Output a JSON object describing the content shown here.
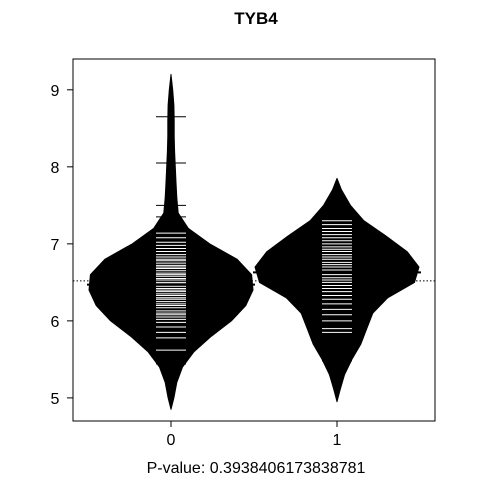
{
  "chart_data": {
    "type": "beanplot",
    "title": "TYB4",
    "xlabel": "P-value: 0.3938406173838781",
    "ylabel": "",
    "categories": [
      "0",
      "1"
    ],
    "yticks": [
      5,
      6,
      7,
      8,
      9
    ],
    "ytick_labels": [
      "5",
      "6",
      "7",
      "8",
      "9"
    ],
    "xtick_labels": [
      "0",
      "1"
    ],
    "ylim": [
      4.7,
      9.4
    ],
    "overall_mean": 6.52,
    "reference_line_style": "dotted",
    "group_means": [
      6.47,
      6.63
    ],
    "fill_color": "#000000",
    "observation_color": "#ffffff",
    "groups": [
      {
        "name": "0",
        "density_profile": [
          {
            "y": 4.85,
            "density": 0.0
          },
          {
            "y": 5.0,
            "density": 0.02
          },
          {
            "y": 5.2,
            "density": 0.04
          },
          {
            "y": 5.4,
            "density": 0.08
          },
          {
            "y": 5.6,
            "density": 0.16
          },
          {
            "y": 5.8,
            "density": 0.28
          },
          {
            "y": 6.0,
            "density": 0.42
          },
          {
            "y": 6.2,
            "density": 0.52
          },
          {
            "y": 6.4,
            "density": 0.57
          },
          {
            "y": 6.6,
            "density": 0.56
          },
          {
            "y": 6.8,
            "density": 0.46
          },
          {
            "y": 7.0,
            "density": 0.27
          },
          {
            "y": 7.2,
            "density": 0.12
          },
          {
            "y": 7.4,
            "density": 0.05
          },
          {
            "y": 7.6,
            "density": 0.04
          },
          {
            "y": 7.8,
            "density": 0.035
          },
          {
            "y": 8.0,
            "density": 0.03
          },
          {
            "y": 8.2,
            "density": 0.025
          },
          {
            "y": 8.4,
            "density": 0.022
          },
          {
            "y": 8.6,
            "density": 0.022
          },
          {
            "y": 8.8,
            "density": 0.02
          },
          {
            "y": 9.0,
            "density": 0.012
          },
          {
            "y": 9.2,
            "density": 0.0
          }
        ],
        "observations": [
          5.44,
          5.62,
          5.78,
          5.85,
          5.92,
          5.98,
          6.02,
          6.05,
          6.08,
          6.1,
          6.13,
          6.17,
          6.2,
          6.22,
          6.25,
          6.28,
          6.3,
          6.33,
          6.35,
          6.38,
          6.4,
          6.42,
          6.45,
          6.48,
          6.5,
          6.53,
          6.55,
          6.58,
          6.6,
          6.62,
          6.65,
          6.68,
          6.7,
          6.72,
          6.75,
          6.78,
          6.8,
          6.83,
          6.86,
          6.9,
          6.94,
          6.98,
          7.02,
          7.08,
          7.14,
          7.35,
          7.5,
          8.05,
          8.65
        ]
      },
      {
        "name": "1",
        "density_profile": [
          {
            "y": 4.95,
            "density": 0.0
          },
          {
            "y": 5.1,
            "density": 0.02
          },
          {
            "y": 5.3,
            "density": 0.05
          },
          {
            "y": 5.5,
            "density": 0.1
          },
          {
            "y": 5.7,
            "density": 0.16
          },
          {
            "y": 5.9,
            "density": 0.2
          },
          {
            "y": 6.1,
            "density": 0.24
          },
          {
            "y": 6.3,
            "density": 0.34
          },
          {
            "y": 6.5,
            "density": 0.52
          },
          {
            "y": 6.7,
            "density": 0.55
          },
          {
            "y": 6.9,
            "density": 0.47
          },
          {
            "y": 7.1,
            "density": 0.33
          },
          {
            "y": 7.3,
            "density": 0.18
          },
          {
            "y": 7.5,
            "density": 0.09
          },
          {
            "y": 7.7,
            "density": 0.03
          },
          {
            "y": 7.85,
            "density": 0.0
          }
        ],
        "observations": [
          5.48,
          5.85,
          5.9,
          6.0,
          6.08,
          6.15,
          6.22,
          6.28,
          6.33,
          6.38,
          6.42,
          6.46,
          6.5,
          6.53,
          6.56,
          6.6,
          6.63,
          6.66,
          6.7,
          6.73,
          6.76,
          6.8,
          6.83,
          6.86,
          6.9,
          6.93,
          6.96,
          7.0,
          7.04,
          7.08,
          7.12,
          7.16,
          7.2,
          7.25,
          7.3
        ]
      }
    ]
  }
}
